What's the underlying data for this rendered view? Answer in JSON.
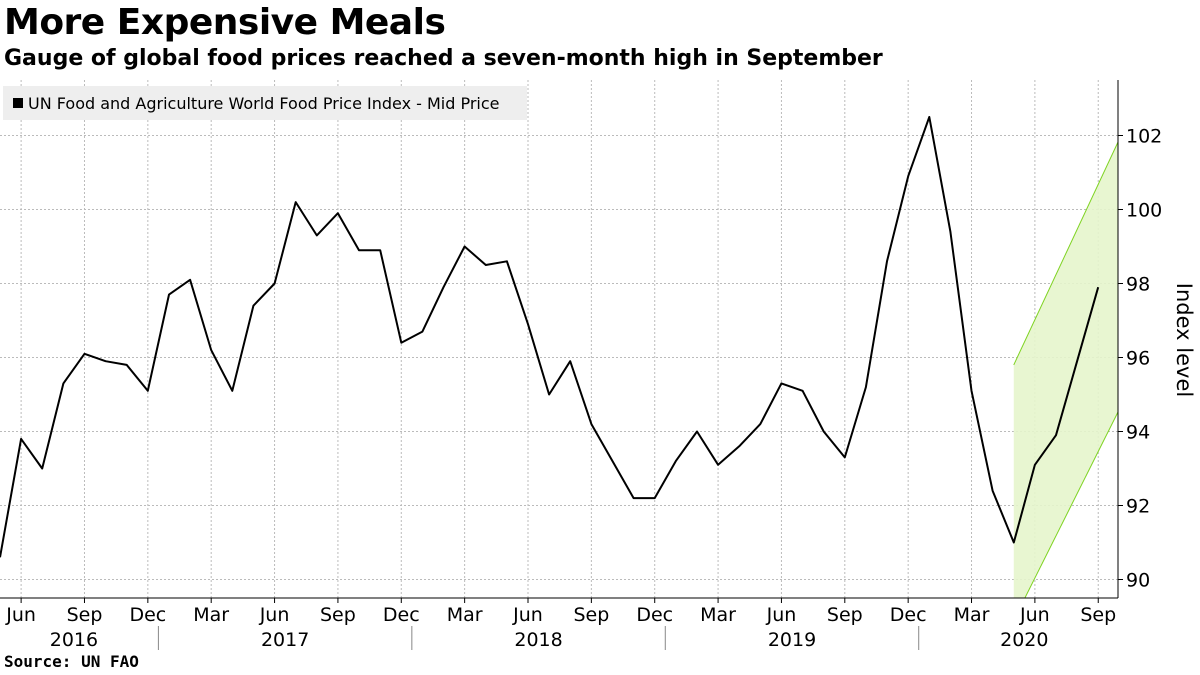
{
  "title": "More Expensive Meals",
  "subtitle": "Gauge of global food prices reached a seven-month high in September",
  "source": "Source: UN FAO",
  "colors": {
    "line": "#000000",
    "grid": "#bbbbbb",
    "band_fill": "#e6f5cc",
    "band_edge": "#7ed321",
    "legend_bg": "#eeeeee"
  },
  "chart_data": {
    "type": "line",
    "title": "More Expensive Meals",
    "subtitle": "Gauge of global food prices reached a seven-month high in September",
    "ylabel": "Index level",
    "ylim": [
      89.5,
      103.5
    ],
    "y_ticks": [
      90,
      92,
      94,
      96,
      98,
      100,
      102
    ],
    "x_range": [
      "2016-05",
      "2020-10"
    ],
    "x_month_ticks": [
      {
        "date": "2016-06",
        "label": "Jun"
      },
      {
        "date": "2016-09",
        "label": "Sep"
      },
      {
        "date": "2016-12",
        "label": "Dec"
      },
      {
        "date": "2017-03",
        "label": "Mar"
      },
      {
        "date": "2017-06",
        "label": "Jun"
      },
      {
        "date": "2017-09",
        "label": "Sep"
      },
      {
        "date": "2017-12",
        "label": "Dec"
      },
      {
        "date": "2018-03",
        "label": "Mar"
      },
      {
        "date": "2018-06",
        "label": "Jun"
      },
      {
        "date": "2018-09",
        "label": "Sep"
      },
      {
        "date": "2018-12",
        "label": "Dec"
      },
      {
        "date": "2019-03",
        "label": "Mar"
      },
      {
        "date": "2019-06",
        "label": "Jun"
      },
      {
        "date": "2019-09",
        "label": "Sep"
      },
      {
        "date": "2019-12",
        "label": "Dec"
      },
      {
        "date": "2020-03",
        "label": "Mar"
      },
      {
        "date": "2020-06",
        "label": "Jun"
      },
      {
        "date": "2020-09",
        "label": "Sep"
      }
    ],
    "x_year_labels": [
      {
        "label": "2016",
        "start": "2016-05",
        "end": "2016-12"
      },
      {
        "label": "2017",
        "start": "2017-01",
        "end": "2017-12"
      },
      {
        "label": "2018",
        "start": "2018-01",
        "end": "2018-12"
      },
      {
        "label": "2019",
        "start": "2019-01",
        "end": "2019-12"
      },
      {
        "label": "2020",
        "start": "2020-01",
        "end": "2020-10"
      }
    ],
    "legend": "top-left",
    "grid": true,
    "series": [
      {
        "name": "UN Food and Agriculture World Food Price Index - Mid Price",
        "points": [
          {
            "x": "2016-05",
            "y": 90.6
          },
          {
            "x": "2016-06",
            "y": 93.8
          },
          {
            "x": "2016-07",
            "y": 93.0
          },
          {
            "x": "2016-08",
            "y": 95.3
          },
          {
            "x": "2016-09",
            "y": 96.1
          },
          {
            "x": "2016-10",
            "y": 95.9
          },
          {
            "x": "2016-11",
            "y": 95.8
          },
          {
            "x": "2016-12",
            "y": 95.1
          },
          {
            "x": "2017-01",
            "y": 97.7
          },
          {
            "x": "2017-02",
            "y": 98.1
          },
          {
            "x": "2017-03",
            "y": 96.2
          },
          {
            "x": "2017-04",
            "y": 95.1
          },
          {
            "x": "2017-05",
            "y": 97.4
          },
          {
            "x": "2017-06",
            "y": 98.0
          },
          {
            "x": "2017-07",
            "y": 100.2
          },
          {
            "x": "2017-08",
            "y": 99.3
          },
          {
            "x": "2017-09",
            "y": 99.9
          },
          {
            "x": "2017-10",
            "y": 98.9
          },
          {
            "x": "2017-11",
            "y": 98.9
          },
          {
            "x": "2017-12",
            "y": 96.4
          },
          {
            "x": "2018-01",
            "y": 96.7
          },
          {
            "x": "2018-02",
            "y": 97.9
          },
          {
            "x": "2018-03",
            "y": 99.0
          },
          {
            "x": "2018-04",
            "y": 98.5
          },
          {
            "x": "2018-05",
            "y": 98.6
          },
          {
            "x": "2018-06",
            "y": 96.9
          },
          {
            "x": "2018-07",
            "y": 95.0
          },
          {
            "x": "2018-08",
            "y": 95.9
          },
          {
            "x": "2018-09",
            "y": 94.2
          },
          {
            "x": "2018-10",
            "y": 93.2
          },
          {
            "x": "2018-11",
            "y": 92.2
          },
          {
            "x": "2018-12",
            "y": 92.2
          },
          {
            "x": "2019-01",
            "y": 93.2
          },
          {
            "x": "2019-02",
            "y": 94.0
          },
          {
            "x": "2019-03",
            "y": 93.1
          },
          {
            "x": "2019-04",
            "y": 93.6
          },
          {
            "x": "2019-05",
            "y": 94.2
          },
          {
            "x": "2019-06",
            "y": 95.3
          },
          {
            "x": "2019-07",
            "y": 95.1
          },
          {
            "x": "2019-08",
            "y": 94.0
          },
          {
            "x": "2019-09",
            "y": 93.3
          },
          {
            "x": "2019-10",
            "y": 95.2
          },
          {
            "x": "2019-11",
            "y": 98.6
          },
          {
            "x": "2019-12",
            "y": 100.9
          },
          {
            "x": "2020-01",
            "y": 102.5
          },
          {
            "x": "2020-02",
            "y": 99.4
          },
          {
            "x": "2020-03",
            "y": 95.1
          },
          {
            "x": "2020-04",
            "y": 92.4
          },
          {
            "x": "2020-05",
            "y": 91.0
          },
          {
            "x": "2020-06",
            "y": 93.1
          },
          {
            "x": "2020-07",
            "y": 93.9
          },
          {
            "x": "2020-08",
            "y": 95.9
          },
          {
            "x": "2020-09",
            "y": 97.9
          }
        ]
      }
    ],
    "annotations": [
      {
        "type": "trend-channel",
        "color": "#7ed321",
        "start": "2020-05",
        "end": "2020-10",
        "upper": [
          {
            "x": "2020-05",
            "y": 95.8
          },
          {
            "x": "2020-10",
            "y": 101.9
          }
        ],
        "lower": [
          {
            "x": "2020-05",
            "y": 88.9
          },
          {
            "x": "2020-10",
            "y": 94.6
          }
        ]
      }
    ]
  }
}
